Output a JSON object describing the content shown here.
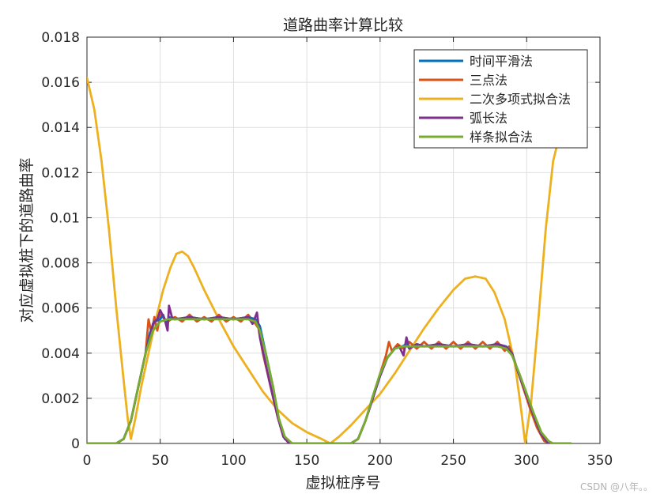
{
  "chart_data": {
    "type": "line",
    "title": "道路曲率计算比较",
    "xlabel": "虚拟桩序号",
    "ylabel": "对应虚拟桩下的道路曲率",
    "xlim": [
      0,
      350
    ],
    "ylim": [
      0,
      0.018
    ],
    "xticks": [
      "0",
      "50",
      "100",
      "150",
      "200",
      "250",
      "300",
      "350"
    ],
    "yticks": [
      "0",
      "0.002",
      "0.004",
      "0.006",
      "0.008",
      "0.01",
      "0.012",
      "0.014",
      "0.016",
      "0.018"
    ],
    "grid": true,
    "legend_position": "top-right",
    "series": [
      {
        "name": "时间平滑法",
        "color": "#0072BD",
        "points": [
          [
            0,
            0
          ],
          [
            20,
            0
          ],
          [
            25,
            0.0002
          ],
          [
            30,
            0.001
          ],
          [
            35,
            0.0025
          ],
          [
            40,
            0.004
          ],
          [
            43,
            0.0049
          ],
          [
            46,
            0.0054
          ],
          [
            50,
            0.0055
          ],
          [
            52,
            0.0057
          ],
          [
            54,
            0.0053
          ],
          [
            56,
            0.0056
          ],
          [
            60,
            0.0055
          ],
          [
            70,
            0.0056
          ],
          [
            80,
            0.0055
          ],
          [
            90,
            0.0056
          ],
          [
            100,
            0.0055
          ],
          [
            110,
            0.0056
          ],
          [
            115,
            0.0055
          ],
          [
            118,
            0.0052
          ],
          [
            122,
            0.004
          ],
          [
            127,
            0.0025
          ],
          [
            131,
            0.001
          ],
          [
            135,
            0.0002
          ],
          [
            140,
            0
          ],
          [
            180,
            0
          ],
          [
            185,
            0.0002
          ],
          [
            190,
            0.001
          ],
          [
            195,
            0.002
          ],
          [
            200,
            0.003
          ],
          [
            205,
            0.0038
          ],
          [
            210,
            0.0042
          ],
          [
            215,
            0.0043
          ],
          [
            218,
            0.0044
          ],
          [
            220,
            0.0042
          ],
          [
            225,
            0.0044
          ],
          [
            230,
            0.0043
          ],
          [
            240,
            0.0044
          ],
          [
            250,
            0.0043
          ],
          [
            260,
            0.0044
          ],
          [
            270,
            0.0043
          ],
          [
            280,
            0.0044
          ],
          [
            286,
            0.0043
          ],
          [
            290,
            0.004
          ],
          [
            295,
            0.003
          ],
          [
            300,
            0.0022
          ],
          [
            305,
            0.0012
          ],
          [
            310,
            0.0004
          ],
          [
            315,
            0
          ],
          [
            330,
            0
          ]
        ]
      },
      {
        "name": "三点法",
        "color": "#D95319",
        "points": [
          [
            0,
            0
          ],
          [
            20,
            0
          ],
          [
            25,
            0.0002
          ],
          [
            30,
            0.001
          ],
          [
            35,
            0.0025
          ],
          [
            40,
            0.004
          ],
          [
            42,
            0.0055
          ],
          [
            44,
            0.0049
          ],
          [
            46,
            0.0056
          ],
          [
            48,
            0.005
          ],
          [
            50,
            0.0057
          ],
          [
            55,
            0.0054
          ],
          [
            60,
            0.0056
          ],
          [
            65,
            0.0054
          ],
          [
            70,
            0.0057
          ],
          [
            75,
            0.0054
          ],
          [
            80,
            0.0056
          ],
          [
            85,
            0.0054
          ],
          [
            90,
            0.0057
          ],
          [
            95,
            0.0054
          ],
          [
            100,
            0.0056
          ],
          [
            105,
            0.0054
          ],
          [
            110,
            0.0057
          ],
          [
            115,
            0.0053
          ],
          [
            117,
            0.0051
          ],
          [
            120,
            0.004
          ],
          [
            125,
            0.0026
          ],
          [
            130,
            0.0012
          ],
          [
            134,
            0.0003
          ],
          [
            138,
            0
          ],
          [
            180,
            0
          ],
          [
            185,
            0.0002
          ],
          [
            190,
            0.001
          ],
          [
            195,
            0.002
          ],
          [
            200,
            0.0031
          ],
          [
            204,
            0.0039
          ],
          [
            206,
            0.0045
          ],
          [
            208,
            0.0041
          ],
          [
            212,
            0.0044
          ],
          [
            216,
            0.0042
          ],
          [
            220,
            0.0045
          ],
          [
            225,
            0.0042
          ],
          [
            230,
            0.0045
          ],
          [
            235,
            0.0042
          ],
          [
            240,
            0.0045
          ],
          [
            245,
            0.0042
          ],
          [
            250,
            0.0045
          ],
          [
            255,
            0.0042
          ],
          [
            260,
            0.0045
          ],
          [
            265,
            0.0042
          ],
          [
            270,
            0.0045
          ],
          [
            275,
            0.0042
          ],
          [
            280,
            0.0045
          ],
          [
            285,
            0.0041
          ],
          [
            288,
            0.0043
          ],
          [
            292,
            0.0036
          ],
          [
            297,
            0.0026
          ],
          [
            302,
            0.0016
          ],
          [
            307,
            0.0007
          ],
          [
            312,
            0.0001
          ],
          [
            316,
            0
          ],
          [
            330,
            0
          ]
        ]
      },
      {
        "name": "二次多项式拟合法",
        "color": "#EDB120",
        "points": [
          [
            0,
            0.0162
          ],
          [
            5,
            0.0148
          ],
          [
            10,
            0.0125
          ],
          [
            15,
            0.0095
          ],
          [
            20,
            0.006
          ],
          [
            25,
            0.0028
          ],
          [
            28,
            0.001
          ],
          [
            30,
            0.0002
          ],
          [
            33,
            0.0011
          ],
          [
            37,
            0.0025
          ],
          [
            42,
            0.004
          ],
          [
            47,
            0.0055
          ],
          [
            52,
            0.0068
          ],
          [
            57,
            0.0078
          ],
          [
            61,
            0.0084
          ],
          [
            65,
            0.0085
          ],
          [
            69,
            0.0083
          ],
          [
            73,
            0.0078
          ],
          [
            80,
            0.0068
          ],
          [
            90,
            0.0055
          ],
          [
            100,
            0.0043
          ],
          [
            110,
            0.0033
          ],
          [
            120,
            0.0023
          ],
          [
            130,
            0.0015
          ],
          [
            140,
            0.0009
          ],
          [
            150,
            0.0005
          ],
          [
            160,
            0.0002
          ],
          [
            166,
            0
          ],
          [
            172,
            0.0003
          ],
          [
            180,
            0.0008
          ],
          [
            190,
            0.0015
          ],
          [
            200,
            0.0022
          ],
          [
            210,
            0.0031
          ],
          [
            220,
            0.0041
          ],
          [
            230,
            0.0051
          ],
          [
            240,
            0.006
          ],
          [
            250,
            0.0068
          ],
          [
            258,
            0.0073
          ],
          [
            265,
            0.0074
          ],
          [
            272,
            0.0073
          ],
          [
            278,
            0.0067
          ],
          [
            285,
            0.0055
          ],
          [
            292,
            0.0035
          ],
          [
            296,
            0.0016
          ],
          [
            299,
            0
          ],
          [
            303,
            0.0018
          ],
          [
            308,
            0.0055
          ],
          [
            313,
            0.0095
          ],
          [
            318,
            0.0125
          ],
          [
            323,
            0.0138
          ]
        ]
      },
      {
        "name": "弧长法",
        "color": "#7E2F8E",
        "points": [
          [
            0,
            0
          ],
          [
            20,
            0
          ],
          [
            25,
            0.0002
          ],
          [
            30,
            0.001
          ],
          [
            35,
            0.0025
          ],
          [
            40,
            0.004
          ],
          [
            45,
            0.0053
          ],
          [
            48,
            0.0055
          ],
          [
            50,
            0.0059
          ],
          [
            53,
            0.0055
          ],
          [
            55,
            0.005
          ],
          [
            56,
            0.0061
          ],
          [
            58,
            0.0056
          ],
          [
            60,
            0.0055
          ],
          [
            70,
            0.0056
          ],
          [
            80,
            0.0055
          ],
          [
            90,
            0.0056
          ],
          [
            100,
            0.0055
          ],
          [
            110,
            0.0056
          ],
          [
            113,
            0.0053
          ],
          [
            116,
            0.0058
          ],
          [
            118,
            0.0047
          ],
          [
            120,
            0.0041
          ],
          [
            125,
            0.0026
          ],
          [
            130,
            0.0012
          ],
          [
            134,
            0.0003
          ],
          [
            138,
            0
          ],
          [
            180,
            0
          ],
          [
            185,
            0.0002
          ],
          [
            190,
            0.001
          ],
          [
            195,
            0.002
          ],
          [
            200,
            0.003
          ],
          [
            205,
            0.0038
          ],
          [
            210,
            0.0042
          ],
          [
            213,
            0.0043
          ],
          [
            216,
            0.0039
          ],
          [
            218,
            0.0047
          ],
          [
            220,
            0.0042
          ],
          [
            225,
            0.0044
          ],
          [
            230,
            0.0043
          ],
          [
            240,
            0.0044
          ],
          [
            250,
            0.0043
          ],
          [
            260,
            0.0044
          ],
          [
            270,
            0.0043
          ],
          [
            280,
            0.0044
          ],
          [
            285,
            0.0043
          ],
          [
            290,
            0.004
          ],
          [
            295,
            0.003
          ],
          [
            300,
            0.0021
          ],
          [
            305,
            0.0012
          ],
          [
            310,
            0.0004
          ],
          [
            315,
            0
          ],
          [
            330,
            0
          ]
        ]
      },
      {
        "name": "样条拟合法",
        "color": "#77AC30",
        "points": [
          [
            0,
            0
          ],
          [
            20,
            0
          ],
          [
            25,
            0.0002
          ],
          [
            30,
            0.001
          ],
          [
            35,
            0.0025
          ],
          [
            40,
            0.004
          ],
          [
            45,
            0.005
          ],
          [
            50,
            0.0054
          ],
          [
            55,
            0.0055
          ],
          [
            60,
            0.0055
          ],
          [
            70,
            0.0055
          ],
          [
            80,
            0.0055
          ],
          [
            90,
            0.0055
          ],
          [
            100,
            0.0055
          ],
          [
            110,
            0.0055
          ],
          [
            115,
            0.0054
          ],
          [
            118,
            0.005
          ],
          [
            122,
            0.004
          ],
          [
            127,
            0.0025
          ],
          [
            131,
            0.0011
          ],
          [
            135,
            0.0003
          ],
          [
            140,
            0
          ],
          [
            180,
            0
          ],
          [
            185,
            0.0002
          ],
          [
            190,
            0.001
          ],
          [
            195,
            0.0021
          ],
          [
            200,
            0.0031
          ],
          [
            205,
            0.0038
          ],
          [
            210,
            0.0042
          ],
          [
            215,
            0.0043
          ],
          [
            220,
            0.0043
          ],
          [
            230,
            0.0043
          ],
          [
            240,
            0.0043
          ],
          [
            250,
            0.0043
          ],
          [
            260,
            0.0043
          ],
          [
            270,
            0.0043
          ],
          [
            280,
            0.0043
          ],
          [
            286,
            0.0042
          ],
          [
            290,
            0.0039
          ],
          [
            295,
            0.0031
          ],
          [
            300,
            0.0022
          ],
          [
            305,
            0.0013
          ],
          [
            310,
            0.0005
          ],
          [
            315,
            0.0001
          ],
          [
            318,
            0
          ],
          [
            330,
            0
          ]
        ]
      }
    ]
  },
  "watermark": "CSDN @八年。。"
}
